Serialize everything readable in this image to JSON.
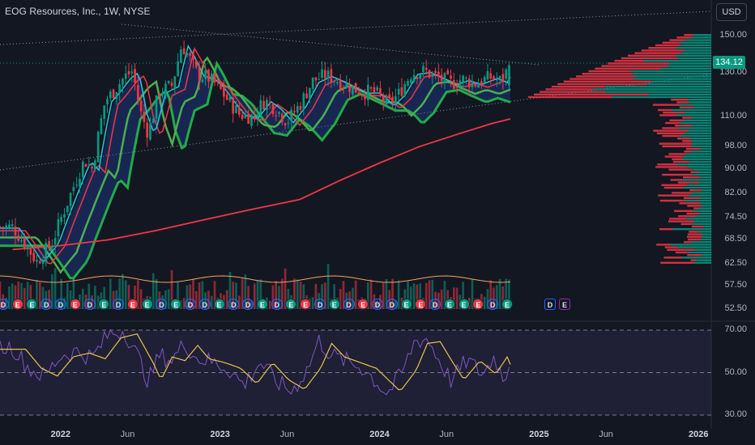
{
  "header": {
    "title": "EOG Resources, Inc., 1W, NYSE",
    "currency": "USD"
  },
  "colors": {
    "up": "#089981",
    "down": "#f23645",
    "rsi": "#7e57c2",
    "rsi_ma": "#e8c547",
    "ma200": "#f23645",
    "background": "#131722"
  },
  "chart_data": [
    {
      "type": "candlestick",
      "title": "EOG Resources, Inc., 1W, NYSE",
      "y_axis_ticks": [
        "150.00",
        "130.00",
        "110.00",
        "98.00",
        "90.00",
        "82.00",
        "74.50",
        "68.50",
        "62.50",
        "57.50",
        "52.50"
      ],
      "x_axis_ticks": [
        "2022",
        "Jun",
        "2023",
        "Jun",
        "2024",
        "Jun",
        "2025",
        "Jun",
        "2026"
      ],
      "scale": "log",
      "last_price": "134.12",
      "price_path": [
        [
          2021.7,
          72
        ],
        [
          2021.85,
          63
        ],
        [
          2021.95,
          68
        ],
        [
          2022.05,
          80
        ],
        [
          2022.15,
          93
        ],
        [
          2022.2,
          90
        ],
        [
          2022.28,
          117
        ],
        [
          2022.33,
          121
        ],
        [
          2022.4,
          128
        ],
        [
          2022.45,
          131
        ],
        [
          2022.5,
          112
        ],
        [
          2022.55,
          103
        ],
        [
          2022.62,
          121
        ],
        [
          2022.7,
          124
        ],
        [
          2022.76,
          145
        ],
        [
          2022.8,
          139
        ],
        [
          2022.86,
          129
        ],
        [
          2022.92,
          128
        ],
        [
          2022.98,
          124
        ],
        [
          2023.05,
          117
        ],
        [
          2023.12,
          111
        ],
        [
          2023.2,
          110
        ],
        [
          2023.28,
          117
        ],
        [
          2023.34,
          114
        ],
        [
          2023.42,
          108
        ],
        [
          2023.5,
          115
        ],
        [
          2023.58,
          126
        ],
        [
          2023.66,
          129
        ],
        [
          2023.72,
          127
        ],
        [
          2023.8,
          124
        ],
        [
          2023.88,
          121
        ],
        [
          2023.96,
          121
        ],
        [
          2024.0,
          119
        ],
        [
          2024.05,
          115
        ],
        [
          2024.12,
          120
        ],
        [
          2024.2,
          130
        ],
        [
          2024.28,
          131
        ],
        [
          2024.36,
          128
        ],
        [
          2024.45,
          125
        ],
        [
          2024.52,
          127
        ],
        [
          2024.6,
          125
        ],
        [
          2024.7,
          128
        ],
        [
          2024.76,
          126
        ],
        [
          2024.82,
          134.12
        ]
      ],
      "ma200_path": [
        [
          2021.7,
          66
        ],
        [
          2022.0,
          67
        ],
        [
          2022.3,
          68.5
        ],
        [
          2022.6,
          71
        ],
        [
          2022.9,
          74
        ],
        [
          2023.2,
          77
        ],
        [
          2023.5,
          80
        ],
        [
          2023.75,
          86
        ],
        [
          2024.0,
          92
        ],
        [
          2024.25,
          98
        ],
        [
          2024.5,
          103
        ],
        [
          2024.7,
          107
        ],
        [
          2024.82,
          109
        ]
      ],
      "events": [
        "D",
        "E",
        "E",
        "D",
        "D",
        "E",
        "D",
        "E",
        "D",
        "E",
        "E",
        "D",
        "E",
        "D",
        "D",
        "E",
        "D",
        "D",
        "E",
        "D",
        "E",
        "E",
        "D",
        "E",
        "D",
        "E",
        "D",
        "D",
        "E",
        "E",
        "D",
        "E",
        "E",
        "E",
        "D",
        "E"
      ],
      "rsi_axis_ticks": [
        "70.00",
        "50.00",
        "30.00"
      ],
      "rsi_levels": [
        70,
        50,
        30
      ],
      "rsi_path": [
        [
          2021.7,
          62
        ],
        [
          2021.8,
          52
        ],
        [
          2021.9,
          48
        ],
        [
          2022.0,
          58
        ],
        [
          2022.1,
          60
        ],
        [
          2022.2,
          57
        ],
        [
          2022.3,
          68
        ],
        [
          2022.4,
          70
        ],
        [
          2022.5,
          55
        ],
        [
          2022.55,
          46
        ],
        [
          2022.62,
          58
        ],
        [
          2022.7,
          56
        ],
        [
          2022.78,
          64
        ],
        [
          2022.85,
          57
        ],
        [
          2022.95,
          55
        ],
        [
          2023.05,
          52
        ],
        [
          2023.15,
          44
        ],
        [
          2023.25,
          55
        ],
        [
          2023.35,
          46
        ],
        [
          2023.45,
          41
        ],
        [
          2023.55,
          52
        ],
        [
          2023.62,
          65
        ],
        [
          2023.7,
          58
        ],
        [
          2023.8,
          55
        ],
        [
          2023.9,
          52
        ],
        [
          2024.0,
          44
        ],
        [
          2024.05,
          40
        ],
        [
          2024.15,
          51
        ],
        [
          2024.22,
          65
        ],
        [
          2024.3,
          66
        ],
        [
          2024.38,
          55
        ],
        [
          2024.45,
          46
        ],
        [
          2024.55,
          56
        ],
        [
          2024.65,
          49
        ],
        [
          2024.72,
          58
        ],
        [
          2024.78,
          46
        ],
        [
          2024.82,
          58
        ]
      ]
    }
  ]
}
